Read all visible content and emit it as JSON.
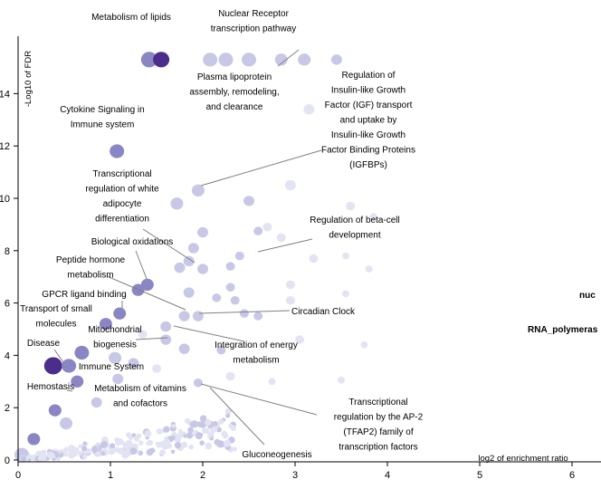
{
  "chart_data": {
    "type": "scatter",
    "title": "",
    "xlabel": "log2 of enrichment ratio",
    "ylabel": "-Log10 of FDR",
    "xlim": [
      0,
      6.2
    ],
    "ylim": [
      0,
      15.5
    ],
    "x_ticks": [
      "0",
      "1",
      "2",
      "3",
      "4",
      "5",
      "6"
    ],
    "y_ticks": [
      "0",
      "2",
      "4",
      "6",
      "8",
      "10",
      "12",
      "14"
    ],
    "grid": false,
    "legend": "none",
    "colors": {
      "dark": "#4b2d8c",
      "mid": "#8a86c4",
      "light": "#c6c8e6",
      "pale": "#e3e4f3",
      "leader": "#808080",
      "axis": "#000000"
    },
    "points": [
      {
        "x": 1.42,
        "y": 15.3,
        "size": 9,
        "shade": "mid"
      },
      {
        "x": 1.55,
        "y": 15.3,
        "size": 9,
        "shade": "dark"
      },
      {
        "x": 2.08,
        "y": 15.3,
        "size": 8,
        "shade": "light"
      },
      {
        "x": 2.25,
        "y": 15.3,
        "size": 8,
        "shade": "light"
      },
      {
        "x": 2.5,
        "y": 15.3,
        "size": 8,
        "shade": "light"
      },
      {
        "x": 2.85,
        "y": 15.3,
        "size": 7,
        "shade": "light"
      },
      {
        "x": 3.1,
        "y": 15.3,
        "size": 7,
        "shade": "light"
      },
      {
        "x": 3.45,
        "y": 15.3,
        "size": 6,
        "shade": "light"
      },
      {
        "x": 3.15,
        "y": 13.4,
        "size": 6,
        "shade": "pale"
      },
      {
        "x": 1.07,
        "y": 11.8,
        "size": 8,
        "shade": "mid"
      },
      {
        "x": 1.72,
        "y": 9.8,
        "size": 7,
        "shade": "light"
      },
      {
        "x": 1.95,
        "y": 10.3,
        "size": 7,
        "shade": "light"
      },
      {
        "x": 2.5,
        "y": 9.9,
        "size": 6,
        "shade": "light"
      },
      {
        "x": 2.95,
        "y": 10.5,
        "size": 6,
        "shade": "pale"
      },
      {
        "x": 3.6,
        "y": 9.7,
        "size": 5,
        "shade": "pale"
      },
      {
        "x": 3.85,
        "y": 9.3,
        "size": 4,
        "shade": "pale"
      },
      {
        "x": 2.0,
        "y": 8.7,
        "size": 6,
        "shade": "light"
      },
      {
        "x": 2.6,
        "y": 8.75,
        "size": 5,
        "shade": "light"
      },
      {
        "x": 2.7,
        "y": 8.9,
        "size": 5,
        "shade": "pale"
      },
      {
        "x": 2.85,
        "y": 8.5,
        "size": 5,
        "shade": "pale"
      },
      {
        "x": 1.9,
        "y": 8.1,
        "size": 6,
        "shade": "light"
      },
      {
        "x": 2.4,
        "y": 7.8,
        "size": 5,
        "shade": "light"
      },
      {
        "x": 3.2,
        "y": 7.7,
        "size": 5,
        "shade": "pale"
      },
      {
        "x": 1.85,
        "y": 7.6,
        "size": 6,
        "shade": "light"
      },
      {
        "x": 1.75,
        "y": 7.35,
        "size": 6,
        "shade": "light"
      },
      {
        "x": 2.0,
        "y": 7.3,
        "size": 6,
        "shade": "light"
      },
      {
        "x": 2.3,
        "y": 7.4,
        "size": 5,
        "shade": "light"
      },
      {
        "x": 3.55,
        "y": 7.8,
        "size": 4,
        "shade": "pale"
      },
      {
        "x": 3.8,
        "y": 7.3,
        "size": 4,
        "shade": "pale"
      },
      {
        "x": 1.4,
        "y": 6.7,
        "size": 7,
        "shade": "mid"
      },
      {
        "x": 1.3,
        "y": 6.5,
        "size": 7,
        "shade": "mid"
      },
      {
        "x": 2.3,
        "y": 6.6,
        "size": 5,
        "shade": "light"
      },
      {
        "x": 2.95,
        "y": 6.7,
        "size": 5,
        "shade": "pale"
      },
      {
        "x": 1.85,
        "y": 6.4,
        "size": 6,
        "shade": "light"
      },
      {
        "x": 2.15,
        "y": 6.2,
        "size": 5,
        "shade": "light"
      },
      {
        "x": 2.35,
        "y": 6.1,
        "size": 5,
        "shade": "light"
      },
      {
        "x": 2.95,
        "y": 6.1,
        "size": 5,
        "shade": "pale"
      },
      {
        "x": 3.55,
        "y": 6.35,
        "size": 4,
        "shade": "pale"
      },
      {
        "x": 1.1,
        "y": 5.6,
        "size": 7,
        "shade": "mid"
      },
      {
        "x": 1.8,
        "y": 5.5,
        "size": 6,
        "shade": "light"
      },
      {
        "x": 1.95,
        "y": 5.5,
        "size": 6,
        "shade": "light"
      },
      {
        "x": 2.45,
        "y": 5.6,
        "size": 5,
        "shade": "light"
      },
      {
        "x": 2.6,
        "y": 5.5,
        "size": 5,
        "shade": "light"
      },
      {
        "x": 0.95,
        "y": 5.2,
        "size": 7,
        "shade": "mid"
      },
      {
        "x": 1.6,
        "y": 5.1,
        "size": 6,
        "shade": "light"
      },
      {
        "x": 1.35,
        "y": 4.8,
        "size": 5,
        "shade": "pale"
      },
      {
        "x": 3.05,
        "y": 4.6,
        "size": 5,
        "shade": "pale"
      },
      {
        "x": 3.75,
        "y": 4.4,
        "size": 4,
        "shade": "pale"
      },
      {
        "x": 1.6,
        "y": 4.6,
        "size": 6,
        "shade": "light"
      },
      {
        "x": 1.8,
        "y": 4.25,
        "size": 6,
        "shade": "light"
      },
      {
        "x": 2.2,
        "y": 4.2,
        "size": 5,
        "shade": "light"
      },
      {
        "x": 0.69,
        "y": 4.1,
        "size": 8,
        "shade": "mid"
      },
      {
        "x": 1.05,
        "y": 3.9,
        "size": 7,
        "shade": "light"
      },
      {
        "x": 0.38,
        "y": 3.6,
        "size": 10,
        "shade": "dark"
      },
      {
        "x": 0.55,
        "y": 3.6,
        "size": 8,
        "shade": "mid"
      },
      {
        "x": 1.25,
        "y": 3.7,
        "size": 6,
        "shade": "light"
      },
      {
        "x": 1.5,
        "y": 3.5,
        "size": 5,
        "shade": "pale"
      },
      {
        "x": 0.64,
        "y": 3.0,
        "size": 7,
        "shade": "mid"
      },
      {
        "x": 1.08,
        "y": 3.1,
        "size": 6,
        "shade": "light"
      },
      {
        "x": 2.3,
        "y": 3.2,
        "size": 5,
        "shade": "pale"
      },
      {
        "x": 2.75,
        "y": 3.0,
        "size": 4,
        "shade": "pale"
      },
      {
        "x": 3.5,
        "y": 3.05,
        "size": 4,
        "shade": "pale"
      },
      {
        "x": 1.95,
        "y": 2.95,
        "size": 5,
        "shade": "light"
      },
      {
        "x": 0.85,
        "y": 2.2,
        "size": 6,
        "shade": "light"
      },
      {
        "x": 0.4,
        "y": 1.9,
        "size": 7,
        "shade": "mid"
      },
      {
        "x": 0.52,
        "y": 1.4,
        "size": 7,
        "shade": "light"
      },
      {
        "x": 0.17,
        "y": 0.8,
        "size": 7,
        "shade": "mid"
      },
      {
        "x": 0.04,
        "y": 0.2,
        "size": 8,
        "shade": "light"
      }
    ],
    "annotations": [
      {
        "text": [
          "Metabolism of lipids"
        ],
        "x": 1.49,
        "y": 15.3
      },
      {
        "text": [
          "Nuclear Receptor",
          "transcription pathway"
        ],
        "x": 2.85,
        "y": 15.3
      },
      {
        "text": [
          "Plasma lipoprotein",
          "assembly, remodeling,",
          "and clearance"
        ],
        "x": 2.85,
        "y": 15.3
      },
      {
        "text": [
          "Regulation of",
          "Insulin-like Growth",
          "Factor (IGF) transport",
          "and uptake by",
          "Insulin-like Growth",
          "Factor Binding Proteins",
          "(IGFBPs)"
        ],
        "x": 1.95,
        "y": 10.3
      },
      {
        "text": [
          "Cytokine Signaling in",
          "Immune system"
        ],
        "x": 1.07,
        "y": 11.8
      },
      {
        "text": [
          "Transcriptional",
          "regulation of white",
          "adipocyte",
          "differentiation"
        ],
        "x": 1.9,
        "y": 7.6
      },
      {
        "text": [
          "Regulation of beta-cell",
          "development"
        ],
        "x": 2.55,
        "y": 7.8
      },
      {
        "text": [
          "Biological oxidations"
        ],
        "x": 1.4,
        "y": 6.7
      },
      {
        "text": [
          "Peptide hormone",
          "metabolism"
        ],
        "x": 1.3,
        "y": 6.5
      },
      {
        "text": [
          "GPCR ligand binding"
        ],
        "x": 1.1,
        "y": 5.6
      },
      {
        "text": [
          "Circadian Clock"
        ],
        "x": 1.95,
        "y": 5.5
      },
      {
        "text": [
          "Transport of small",
          "molecules"
        ],
        "x": 0.95,
        "y": 5.2
      },
      {
        "text": [
          "Mitochondrial",
          "biogenesis"
        ],
        "x": 1.6,
        "y": 4.6
      },
      {
        "text": [
          "Integration of energy",
          "metabolism"
        ],
        "x": 1.6,
        "y": 5.1
      },
      {
        "text": [
          "Disease"
        ],
        "x": 0.38,
        "y": 3.6
      },
      {
        "text": [
          "Immune System"
        ],
        "x": 0.55,
        "y": 3.6
      },
      {
        "text": [
          "Hemostasis"
        ],
        "x": 0.64,
        "y": 3.0
      },
      {
        "text": [
          "Metabolism of vitamins",
          "and cofactors"
        ],
        "x": 0.85,
        "y": 2.2
      },
      {
        "text": [
          "Transcriptional",
          "regulation by the AP-2",
          "(TFAP2) family of",
          "transcription factors"
        ],
        "x": 1.95,
        "y": 2.95
      },
      {
        "text": [
          "Gluconeogenesis"
        ],
        "x": 2.1,
        "y": 2.0
      }
    ],
    "clipped_labels": [
      "nuc",
      "RNA_polymeras"
    ]
  }
}
